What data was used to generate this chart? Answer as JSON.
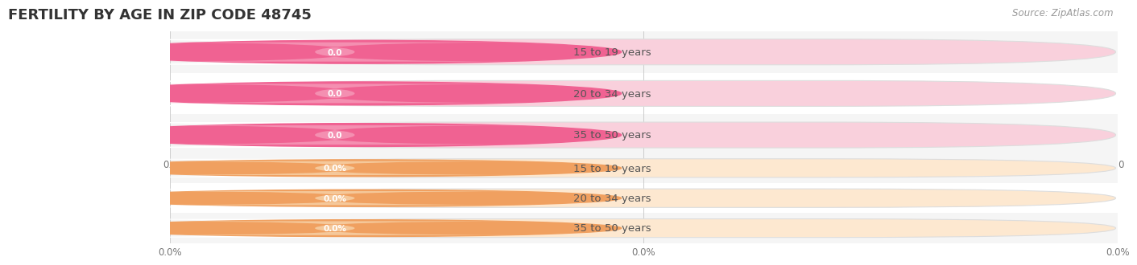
{
  "title": "FERTILITY BY AGE IN ZIP CODE 48745",
  "source": "Source: ZipAtlas.com",
  "top_section": {
    "categories": [
      "15 to 19 years",
      "20 to 34 years",
      "35 to 50 years"
    ],
    "values": [
      0.0,
      0.0,
      0.0
    ],
    "pill_fill": "#f9d0dc",
    "circle_color": "#f06292",
    "badge_color": "#f48fb1",
    "value_format": "0.0",
    "tick_label": "0.0"
  },
  "bottom_section": {
    "categories": [
      "15 to 19 years",
      "20 to 34 years",
      "35 to 50 years"
    ],
    "values": [
      0.0,
      0.0,
      0.0
    ],
    "pill_fill": "#fde8d0",
    "circle_color": "#f0a060",
    "badge_color": "#f5c89a",
    "value_format": "0.0%",
    "tick_label": "0.0%"
  },
  "background_color": "#ffffff",
  "row_bg_even": "#f5f5f5",
  "row_bg_odd": "#ffffff",
  "bar_height": 0.62,
  "title_fontsize": 13,
  "label_fontsize": 9.5,
  "source_fontsize": 8.5,
  "tick_fontsize": 8.5,
  "grid_color": "#cccccc",
  "x_ticks_top": [
    0.0,
    0.0,
    0.0
  ],
  "x_ticks_bot": [
    0.0,
    0.0,
    0.0
  ],
  "x_tick_positions": [
    0.0,
    0.5,
    1.0
  ]
}
